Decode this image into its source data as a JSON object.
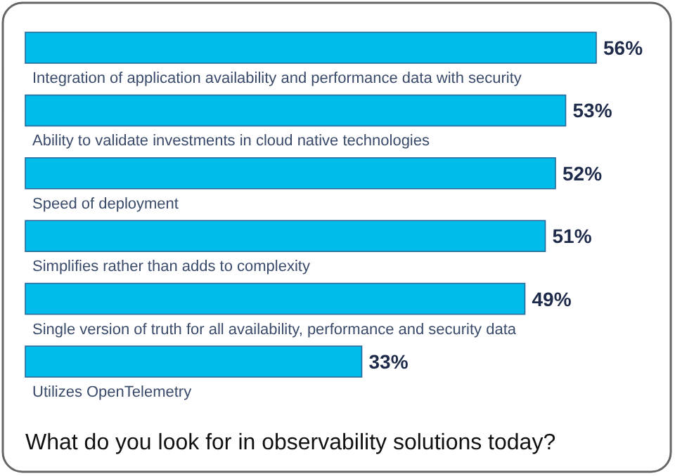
{
  "chart_data": {
    "type": "bar",
    "orientation": "horizontal",
    "title": "What do you look for in observability solutions today?",
    "categories": [
      "Integration of application availability and performance data with security",
      "Ability to validate investments in cloud native technologies",
      "Speed of deployment",
      "Simplifies rather than adds to complexity",
      "Single version of truth for all availability, performance and security data",
      "Utilizes OpenTelemetry"
    ],
    "values": [
      56,
      53,
      52,
      51,
      49,
      33
    ],
    "value_labels": [
      "56%",
      "53%",
      "52%",
      "51%",
      "49%",
      "33%"
    ],
    "color": "#00bceb"
  }
}
